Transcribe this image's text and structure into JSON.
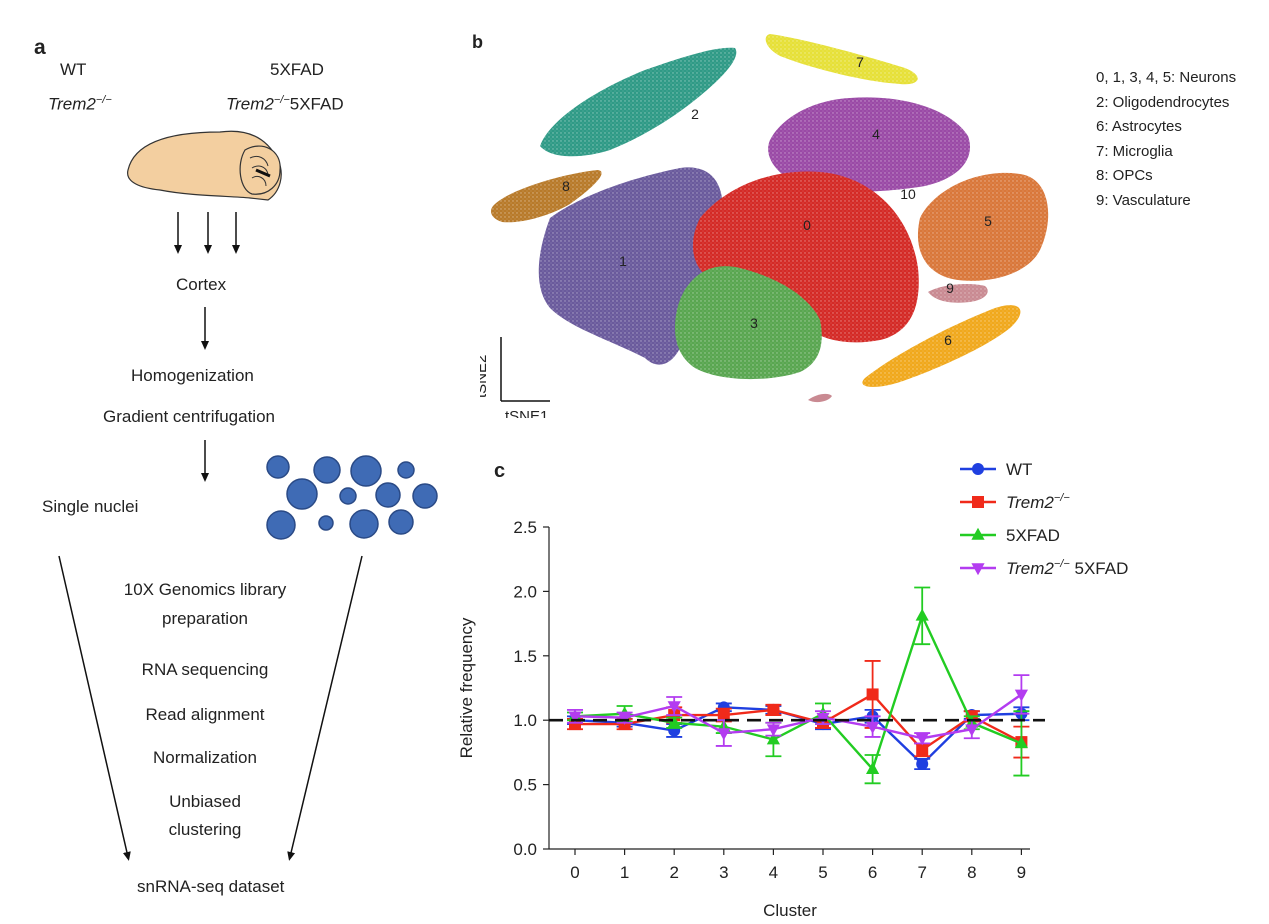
{
  "panel_a": {
    "letter": "a",
    "genotypes": {
      "wt": "WT",
      "trem2_prefix": "Trem2",
      "trem2_sup": "−/−",
      "fivexfad": "5XFAD",
      "trem2_5xfad_suffix": "5XFAD"
    },
    "steps": {
      "cortex": "Cortex",
      "homogenization": "Homogenization",
      "gradient": "Gradient centrifugation",
      "single_nuclei": "Single nuclei",
      "library_line1": "10X Genomics library",
      "library_line2": "preparation",
      "rna_seq": "RNA sequencing",
      "read_alignment": "Read alignment",
      "normalization": "Normalization",
      "clustering_line1": "Unbiased",
      "clustering_line2": "clustering",
      "dataset": "snRNA-seq dataset"
    }
  },
  "panel_b": {
    "letter": "b",
    "axis_x": "tSNE1",
    "axis_y": "tSNE2",
    "cluster_labels": [
      "0",
      "1",
      "2",
      "3",
      "4",
      "5",
      "6",
      "7",
      "8",
      "9",
      "10"
    ],
    "cluster_colors": {
      "0": "#d42a26",
      "1": "#6a5a9c",
      "2": "#2f9a86",
      "3": "#59a650",
      "4": "#9a4aa6",
      "5": "#d9773a",
      "6": "#f0a81c",
      "7": "#e6e038",
      "8": "#b87a2a",
      "9": "#c98a92"
    },
    "legend": [
      "0, 1, 3, 4, 5: Neurons",
      "2: Oligodendrocytes",
      "6: Astrocytes",
      "7: Microglia",
      "8: OPCs",
      "9: Vasculature"
    ]
  },
  "panel_c": {
    "letter": "c"
  },
  "chart_data": {
    "type": "line",
    "xlabel": "Cluster",
    "ylabel": "Relative frequency",
    "ylim": [
      0,
      2.5
    ],
    "yticks": [
      "0.0",
      "0.5",
      "1.0",
      "1.5",
      "2.0",
      "2.5"
    ],
    "categories": [
      "0",
      "1",
      "2",
      "3",
      "4",
      "5",
      "6",
      "7",
      "8",
      "9"
    ],
    "reference_line": 1.0,
    "legend_position": "top-right",
    "series": [
      {
        "name": "WT",
        "name_sup": "",
        "name_suffix": "",
        "color": "#1f3fe0",
        "marker": "circle",
        "values": [
          1.0,
          0.98,
          0.92,
          1.1,
          1.08,
          0.97,
          1.03,
          0.66,
          1.04,
          1.05
        ],
        "errors": [
          0.03,
          0.03,
          0.05,
          0.03,
          0.03,
          0.04,
          0.05,
          0.04,
          0.03,
          0.05
        ]
      },
      {
        "name": "Trem2",
        "name_sup": "−/−",
        "name_suffix": "",
        "color": "#f02a1a",
        "marker": "square",
        "values": [
          0.97,
          0.97,
          1.04,
          1.04,
          1.08,
          0.98,
          1.2,
          0.77,
          1.03,
          0.83
        ],
        "errors": [
          0.04,
          0.04,
          0.06,
          0.05,
          0.04,
          0.04,
          0.26,
          0.05,
          0.04,
          0.12
        ]
      },
      {
        "name": "5XFAD",
        "name_sup": "",
        "name_suffix": "",
        "color": "#22cc22",
        "marker": "triangle-up",
        "values": [
          1.03,
          1.05,
          0.98,
          0.95,
          0.85,
          1.05,
          0.62,
          1.81,
          0.98,
          0.82
        ],
        "errors": [
          0.03,
          0.06,
          0.04,
          0.05,
          0.13,
          0.08,
          0.11,
          0.22,
          0.05,
          0.25
        ]
      },
      {
        "name": "Trem2",
        "name_sup": "−/−",
        "name_suffix": " 5XFAD",
        "color": "#b33cf0",
        "marker": "triangle-down",
        "values": [
          1.03,
          1.02,
          1.11,
          0.9,
          0.93,
          1.02,
          0.95,
          0.86,
          0.93,
          1.2
        ],
        "errors": [
          0.05,
          0.04,
          0.07,
          0.1,
          0.05,
          0.05,
          0.08,
          0.04,
          0.07,
          0.15
        ]
      }
    ]
  }
}
